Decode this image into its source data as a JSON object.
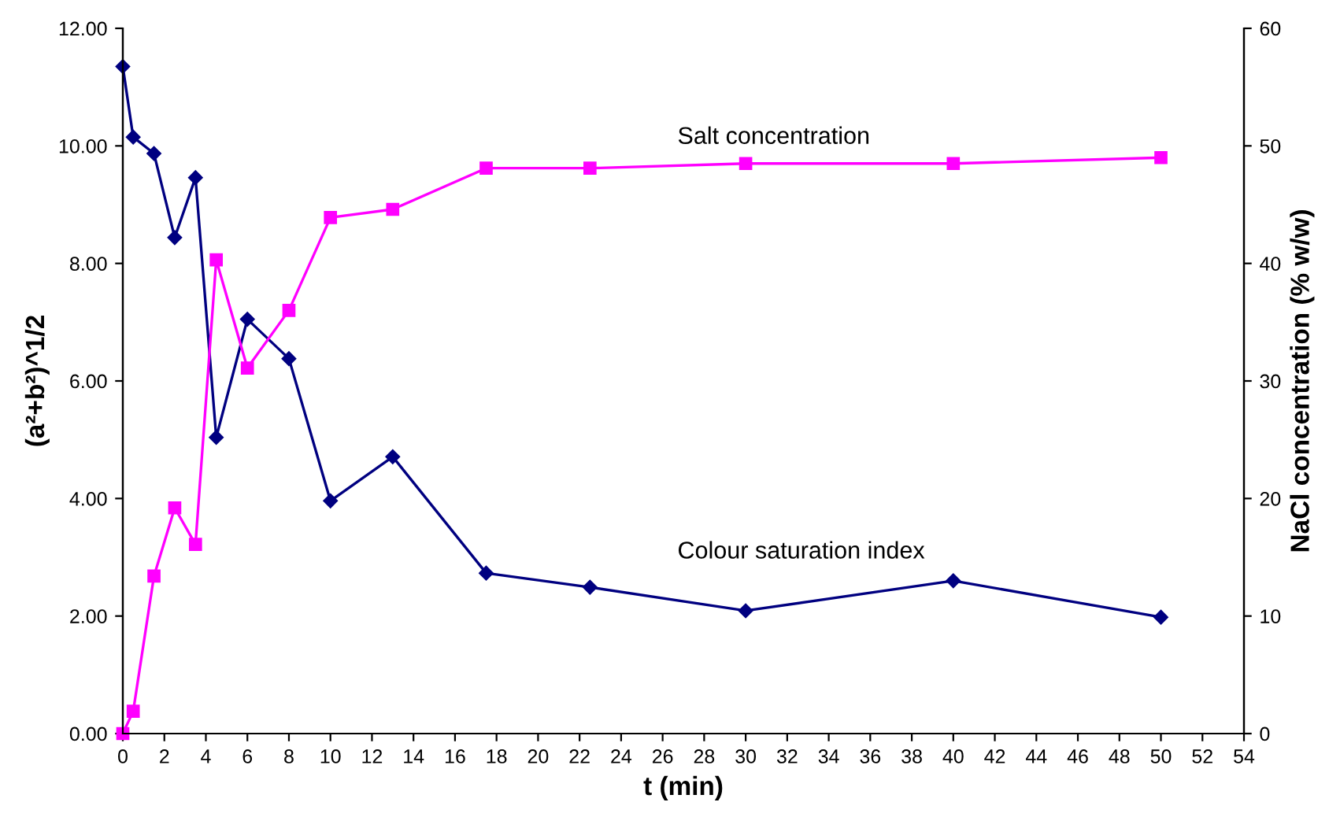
{
  "chart_data": {
    "type": "line",
    "xlabel": "t (min)",
    "ylabel": "(a²+b²)^1/2",
    "y2label": "NaCl concentration (% w/w)",
    "xlim": [
      0,
      54
    ],
    "xticks": [
      0,
      2,
      4,
      6,
      8,
      10,
      12,
      14,
      16,
      18,
      20,
      22,
      24,
      26,
      28,
      30,
      32,
      34,
      36,
      38,
      40,
      42,
      44,
      46,
      48,
      50,
      52,
      54
    ],
    "ylim": [
      0,
      12
    ],
    "yticks": [
      {
        "value": 0,
        "label": "0.00"
      },
      {
        "value": 2,
        "label": "2.00"
      },
      {
        "value": 4,
        "label": "4.00"
      },
      {
        "value": 6,
        "label": "6.00"
      },
      {
        "value": 8,
        "label": "8.00"
      },
      {
        "value": 10,
        "label": "10.00"
      },
      {
        "value": 12,
        "label": "12.00"
      }
    ],
    "y2lim": [
      0,
      60
    ],
    "y2ticks": [
      0,
      10,
      20,
      30,
      40,
      50,
      60
    ],
    "grid": false,
    "legend": false,
    "series": [
      {
        "name": "Colour saturation index",
        "color": "#000080",
        "marker": "diamond",
        "x": [
          0,
          0.5,
          1.5,
          2.5,
          3.5,
          4.5,
          6,
          8,
          10,
          13,
          17.5,
          22.5,
          30,
          40,
          50
        ],
        "values": [
          11.35,
          10.15,
          9.87,
          8.44,
          9.46,
          5.04,
          7.05,
          6.38,
          3.96,
          4.71,
          2.73,
          2.49,
          2.09,
          2.6,
          1.98
        ]
      },
      {
        "name": "Salt concentration",
        "color": "#ff00ff",
        "marker": "square",
        "axis": "y2",
        "x": [
          0,
          0.5,
          1.5,
          2.5,
          3.5,
          4.5,
          6,
          8,
          10,
          13,
          17.5,
          22.5,
          30,
          40,
          50
        ],
        "values": [
          0,
          1.9,
          13.4,
          19.2,
          16.1,
          40.3,
          31.1,
          36.0,
          43.9,
          44.6,
          48.1,
          48.1,
          48.5,
          48.5,
          49.0
        ]
      }
    ]
  }
}
